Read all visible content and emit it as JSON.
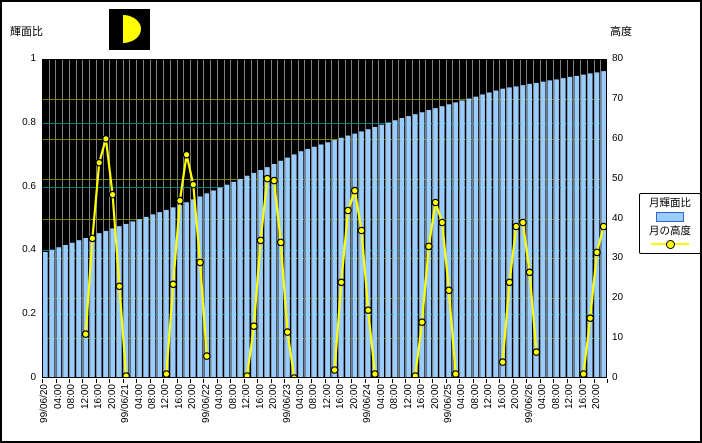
{
  "frame": {
    "bg": "#FFFFFF",
    "border_color": "#000000"
  },
  "moon_icon": {
    "bg": "#000000",
    "glyph_color": "#FFFF00",
    "phase": "waxing-half"
  },
  "left_axis_title": "輝面比",
  "right_axis_title": "高度",
  "legend": {
    "border_color": "#000000",
    "items": [
      {
        "label": "月輝面比",
        "swatch": "bar",
        "fill": "#99CCFF",
        "stroke": "#3366CC"
      },
      {
        "label": "月の高度",
        "swatch": "line-marker",
        "color": "#FFFF00",
        "marker_stroke": "#000000"
      }
    ]
  },
  "chart_data": {
    "type": "combo",
    "title": "",
    "x_start": "99/06/20 00:00",
    "x_interval_hours": 2,
    "x_label_step": 2,
    "x_labels": [
      "99/06/20",
      "04:00",
      "08:00",
      "12:00",
      "16:00",
      "20:00",
      "99/06/21",
      "04:00",
      "08:00",
      "12:00",
      "16:00",
      "20:00",
      "99/06/22",
      "04:00",
      "08:00",
      "12:00",
      "16:00",
      "20:00",
      "99/06/23",
      "04:00",
      "08:00",
      "12:00",
      "16:00",
      "20:00",
      "99/06/24",
      "04:00",
      "08:00",
      "12:00",
      "16:00",
      "20:00",
      "99/06/25",
      "04:00",
      "08:00",
      "12:00",
      "16:00",
      "20:00",
      "99/06/26",
      "04:00",
      "08:00",
      "12:00",
      "16:00",
      "20:00"
    ],
    "left_axis": {
      "title": "輝面比",
      "min": 0,
      "max": 1,
      "tick_labels": [
        "1",
        "0.8",
        "0.6",
        "0.4",
        "0.2",
        "0"
      ],
      "tick_values": [
        1,
        0.8,
        0.6,
        0.4,
        0.2,
        0
      ],
      "gridline_values": [
        0.8,
        0.6,
        0.4,
        0.2
      ]
    },
    "right_axis": {
      "title": "高度",
      "min": 0,
      "max": 80,
      "tick_labels": [
        "80",
        "70",
        "60",
        "50",
        "40",
        "30",
        "20",
        "10",
        "0"
      ],
      "tick_values": [
        80,
        70,
        60,
        50,
        40,
        30,
        20,
        10,
        0
      ],
      "gridline_values": [
        70,
        60,
        50,
        40,
        30,
        20,
        10
      ]
    },
    "plot": {
      "bg": "#000000",
      "vgrid_color": "#808080",
      "hgrid_left_color": "#008080",
      "hgrid_right_color": "#808000",
      "border_color": "#000000"
    },
    "series": [
      {
        "name": "月輝面比",
        "type": "bar",
        "axis": "left",
        "color": "#99CCFF",
        "values": [
          0.395,
          0.402,
          0.41,
          0.417,
          0.424,
          0.432,
          0.439,
          0.446,
          0.454,
          0.461,
          0.469,
          0.476,
          0.483,
          0.491,
          0.498,
          0.505,
          0.513,
          0.52,
          0.527,
          0.535,
          0.542,
          0.551,
          0.56,
          0.569,
          0.579,
          0.588,
          0.597,
          0.606,
          0.615,
          0.624,
          0.634,
          0.643,
          0.652,
          0.661,
          0.671,
          0.681,
          0.691,
          0.701,
          0.711,
          0.718,
          0.725,
          0.732,
          0.739,
          0.746,
          0.753,
          0.76,
          0.766,
          0.773,
          0.78,
          0.787,
          0.794,
          0.801,
          0.808,
          0.815,
          0.821,
          0.827,
          0.833,
          0.84,
          0.846,
          0.852,
          0.858,
          0.864,
          0.87,
          0.876,
          0.882,
          0.889,
          0.895,
          0.901,
          0.907,
          0.911,
          0.914,
          0.918,
          0.922,
          0.925,
          0.929,
          0.933,
          0.936,
          0.94,
          0.944,
          0.947,
          0.951,
          0.955,
          0.958,
          0.962
        ]
      },
      {
        "name": "月の高度",
        "type": "line",
        "axis": "right",
        "color": "#FFFF00",
        "marker": "circle",
        "marker_fill": "#FFFF00",
        "marker_stroke": "#000000",
        "values": [
          null,
          null,
          null,
          null,
          null,
          null,
          11,
          35,
          54,
          60,
          46,
          23,
          0.5,
          null,
          null,
          null,
          null,
          null,
          1,
          23.5,
          44.5,
          56,
          48.5,
          29,
          5.5,
          null,
          null,
          null,
          null,
          null,
          0.5,
          13,
          34.5,
          50,
          49.5,
          34,
          11.5,
          0,
          null,
          null,
          null,
          null,
          null,
          2,
          24,
          42,
          47,
          37,
          17,
          1,
          null,
          null,
          null,
          null,
          null,
          0.5,
          14,
          33,
          44,
          39,
          22,
          1,
          null,
          null,
          null,
          null,
          null,
          null,
          4,
          24,
          38,
          39,
          26.5,
          6.5,
          null,
          null,
          null,
          null,
          null,
          null,
          1,
          15,
          31.5,
          38
        ]
      }
    ]
  }
}
